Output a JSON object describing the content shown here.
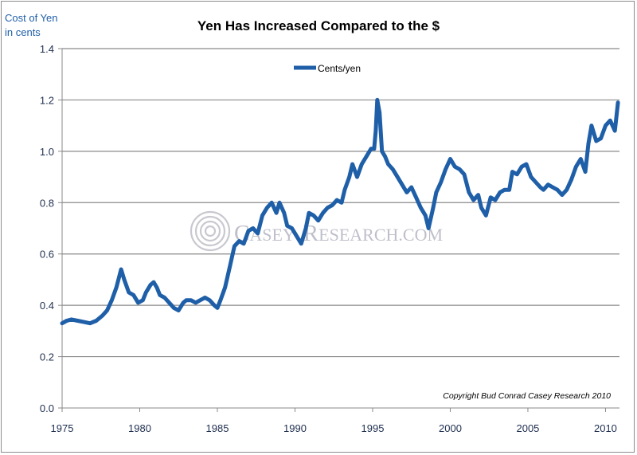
{
  "chart_data": {
    "type": "line",
    "title": "Yen Has Increased Compared to the $",
    "ylabel": [
      "Cost of Yen",
      "in cents"
    ],
    "xlabel": "",
    "xlim": [
      1975,
      2010.9
    ],
    "ylim": [
      0,
      1.4
    ],
    "x_ticks": [
      1975,
      1980,
      1985,
      1990,
      1995,
      2000,
      2005,
      2010
    ],
    "y_ticks": [
      "0.0",
      "0.2",
      "0.4",
      "0.6",
      "0.8",
      "1.0",
      "1.2",
      "1.4"
    ],
    "grid": "horizontal",
    "legend_position": "top-center",
    "annotation": "Copyright Bud Conrad Casey Research 2010",
    "watermark": {
      "big": [
        "C",
        "R"
      ],
      "small": [
        "ASEY",
        "ESEARCH",
        ".COM"
      ]
    },
    "series": [
      {
        "name": "Cents/yen",
        "color": "#1f5fa8",
        "x": [
          1975.0,
          1975.3,
          1975.6,
          1976.0,
          1976.4,
          1976.8,
          1977.2,
          1977.6,
          1977.9,
          1978.2,
          1978.5,
          1978.8,
          1979.0,
          1979.3,
          1979.6,
          1979.9,
          1980.2,
          1980.4,
          1980.7,
          1980.9,
          1981.1,
          1981.3,
          1981.6,
          1981.9,
          1982.2,
          1982.5,
          1982.8,
          1983.0,
          1983.3,
          1983.6,
          1983.9,
          1984.2,
          1984.5,
          1984.8,
          1985.0,
          1985.2,
          1985.5,
          1985.8,
          1986.1,
          1986.4,
          1986.7,
          1987.0,
          1987.3,
          1987.6,
          1987.9,
          1988.2,
          1988.5,
          1988.8,
          1989.0,
          1989.3,
          1989.5,
          1989.8,
          1990.0,
          1990.2,
          1990.4,
          1990.7,
          1990.9,
          1991.2,
          1991.5,
          1991.8,
          1992.1,
          1992.4,
          1992.7,
          1993.0,
          1993.2,
          1993.5,
          1993.7,
          1994.0,
          1994.3,
          1994.6,
          1994.9,
          1995.1,
          1995.2,
          1995.3,
          1995.45,
          1995.6,
          1995.8,
          1996.0,
          1996.3,
          1996.6,
          1996.9,
          1997.2,
          1997.5,
          1997.8,
          1998.1,
          1998.4,
          1998.6,
          1998.9,
          1999.1,
          1999.4,
          1999.7,
          2000.0,
          2000.3,
          2000.6,
          2000.9,
          2001.2,
          2001.5,
          2001.8,
          2002.0,
          2002.3,
          2002.6,
          2002.9,
          2003.2,
          2003.5,
          2003.8,
          2004.0,
          2004.3,
          2004.6,
          2004.9,
          2005.2,
          2005.5,
          2005.8,
          2006.0,
          2006.3,
          2006.6,
          2006.9,
          2007.2,
          2007.5,
          2007.8,
          2008.1,
          2008.4,
          2008.7,
          2008.9,
          2009.1,
          2009.4,
          2009.7,
          2010.0,
          2010.3,
          2010.6,
          2010.8
        ],
        "values": [
          0.33,
          0.34,
          0.345,
          0.34,
          0.335,
          0.33,
          0.34,
          0.36,
          0.38,
          0.42,
          0.47,
          0.54,
          0.5,
          0.45,
          0.44,
          0.41,
          0.42,
          0.45,
          0.48,
          0.49,
          0.47,
          0.44,
          0.43,
          0.41,
          0.39,
          0.38,
          0.41,
          0.42,
          0.42,
          0.41,
          0.42,
          0.43,
          0.42,
          0.4,
          0.39,
          0.42,
          0.47,
          0.55,
          0.63,
          0.65,
          0.64,
          0.69,
          0.7,
          0.68,
          0.75,
          0.78,
          0.8,
          0.76,
          0.8,
          0.76,
          0.71,
          0.7,
          0.68,
          0.66,
          0.64,
          0.7,
          0.76,
          0.75,
          0.73,
          0.76,
          0.78,
          0.79,
          0.81,
          0.8,
          0.85,
          0.9,
          0.95,
          0.9,
          0.95,
          0.98,
          1.01,
          1.01,
          1.08,
          1.2,
          1.15,
          1.0,
          0.98,
          0.95,
          0.93,
          0.9,
          0.87,
          0.84,
          0.86,
          0.82,
          0.78,
          0.75,
          0.7,
          0.78,
          0.84,
          0.88,
          0.93,
          0.97,
          0.94,
          0.93,
          0.91,
          0.84,
          0.81,
          0.83,
          0.78,
          0.75,
          0.82,
          0.81,
          0.84,
          0.85,
          0.85,
          0.92,
          0.91,
          0.94,
          0.95,
          0.9,
          0.88,
          0.86,
          0.85,
          0.87,
          0.86,
          0.85,
          0.83,
          0.85,
          0.89,
          0.94,
          0.97,
          0.92,
          1.03,
          1.1,
          1.04,
          1.05,
          1.1,
          1.12,
          1.08,
          1.19
        ]
      }
    ]
  }
}
